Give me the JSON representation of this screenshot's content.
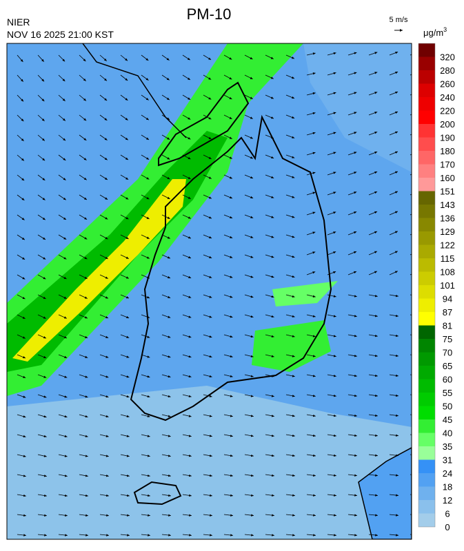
{
  "header": {
    "title": "PM-10",
    "source": "NIER",
    "datetime": "NOV 16 2025 21:00 KST"
  },
  "wind_scale": {
    "label": "5 m/s"
  },
  "colorbar": {
    "unit": "μg/m",
    "unit_exponent": "3",
    "ticks": [
      0,
      6,
      12,
      18,
      24,
      31,
      35,
      40,
      45,
      50,
      55,
      60,
      65,
      70,
      75,
      81,
      87,
      94,
      101,
      108,
      115,
      122,
      129,
      136,
      143,
      151,
      160,
      170,
      180,
      190,
      200,
      220,
      240,
      260,
      280,
      320
    ],
    "colors": [
      "#a3cdea",
      "#8ac0ec",
      "#6fb1ee",
      "#52a1f2",
      "#3591f6",
      "#99ff99",
      "#66ff66",
      "#33ee33",
      "#00dd00",
      "#00cc00",
      "#00bb00",
      "#00aa00",
      "#009900",
      "#008500",
      "#006600",
      "#ffff00",
      "#eeee00",
      "#dddd00",
      "#cccc00",
      "#bbbb00",
      "#aaaa00",
      "#999900",
      "#888800",
      "#777700",
      "#666600",
      "#ff9999",
      "#ff8080",
      "#ff6666",
      "#ff4d4d",
      "#ff3333",
      "#ff0000",
      "#ee0000",
      "#dd0000",
      "#bb0000",
      "#990000",
      "#700000"
    ]
  }
}
